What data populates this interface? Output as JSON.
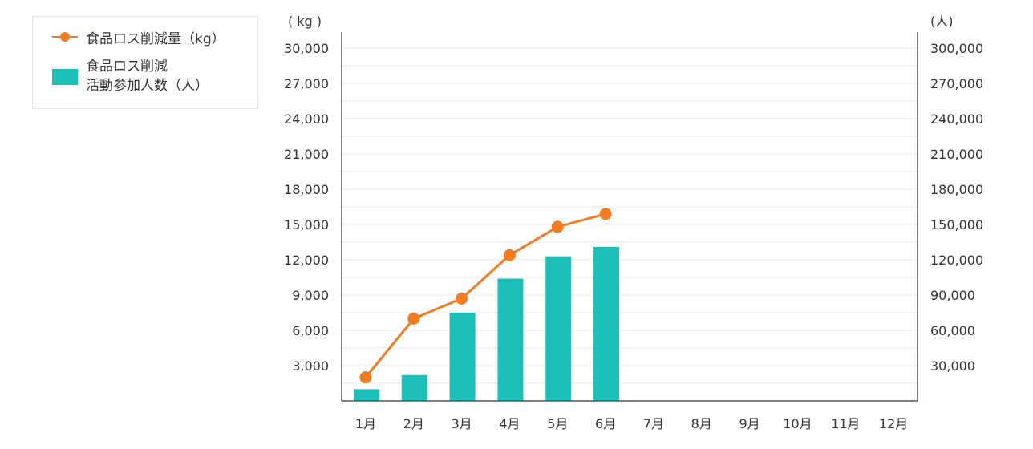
{
  "legend": {
    "line_label": "食品ロス削減量（kg）",
    "bar_label": "食品ロス削減\n活動参加人数（人）"
  },
  "colors": {
    "line": "#f37b21",
    "bar": "#1cc0b9",
    "grid": "#e8e8e8",
    "axis": "#555555"
  },
  "chart_data": {
    "type": "bar",
    "categories": [
      "1月",
      "2月",
      "3月",
      "4月",
      "5月",
      "6月",
      "7月",
      "8月",
      "9月",
      "10月",
      "11月",
      "12月"
    ],
    "y_left": {
      "unit": "( kg )",
      "ylim": [
        0,
        30000
      ],
      "ticks": [
        3000,
        6000,
        9000,
        12000,
        15000,
        18000,
        21000,
        24000,
        27000,
        30000
      ],
      "tick_labels": [
        "3,000",
        "6,000",
        "9,000",
        "12,000",
        "15,000",
        "18,000",
        "21,000",
        "24,000",
        "27,000",
        "30,000"
      ]
    },
    "y_right": {
      "unit": "(人)",
      "ylim": [
        0,
        300000
      ],
      "ticks": [
        30000,
        60000,
        90000,
        120000,
        150000,
        180000,
        210000,
        240000,
        270000,
        300000
      ],
      "tick_labels": [
        "30,000",
        "60,000",
        "90,000",
        "120,000",
        "150,000",
        "180,000",
        "210,000",
        "240,000",
        "270,000",
        "300,000"
      ]
    },
    "series": [
      {
        "name": "食品ロス削減量（kg）",
        "type": "line",
        "axis": "left",
        "values": [
          2000,
          7000,
          8700,
          12400,
          14800,
          15900,
          null,
          null,
          null,
          null,
          null,
          null
        ]
      },
      {
        "name": "食品ロス削減活動参加人数（人）",
        "type": "bar",
        "axis": "right",
        "values": [
          10000,
          22000,
          75000,
          104000,
          123000,
          131000,
          null,
          null,
          null,
          null,
          null,
          null
        ]
      }
    ],
    "grid": true,
    "legend_position": "top-left"
  }
}
